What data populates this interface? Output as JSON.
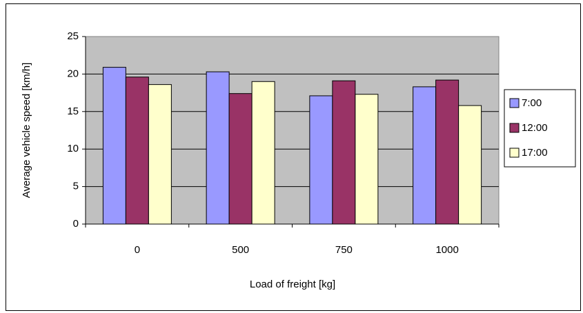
{
  "chart_data": {
    "type": "bar",
    "title": "",
    "xlabel": "Load of freight [kg]",
    "ylabel": "Average vehicle speed [km/h]",
    "categories": [
      "0",
      "500",
      "750",
      "1000"
    ],
    "ylim": [
      0,
      25
    ],
    "yticks": [
      0,
      5,
      10,
      15,
      20,
      25
    ],
    "grid": true,
    "legend_position": "right",
    "plot_background": "#c0c0c0",
    "series": [
      {
        "name": "7:00",
        "color": "#9999ff",
        "values": [
          20.9,
          20.3,
          17.1,
          18.3
        ]
      },
      {
        "name": "12:00",
        "color": "#993366",
        "values": [
          19.6,
          17.4,
          19.1,
          19.2
        ]
      },
      {
        "name": "17:00",
        "color": "#ffffcc",
        "values": [
          18.6,
          19.0,
          17.3,
          15.8
        ]
      }
    ]
  }
}
